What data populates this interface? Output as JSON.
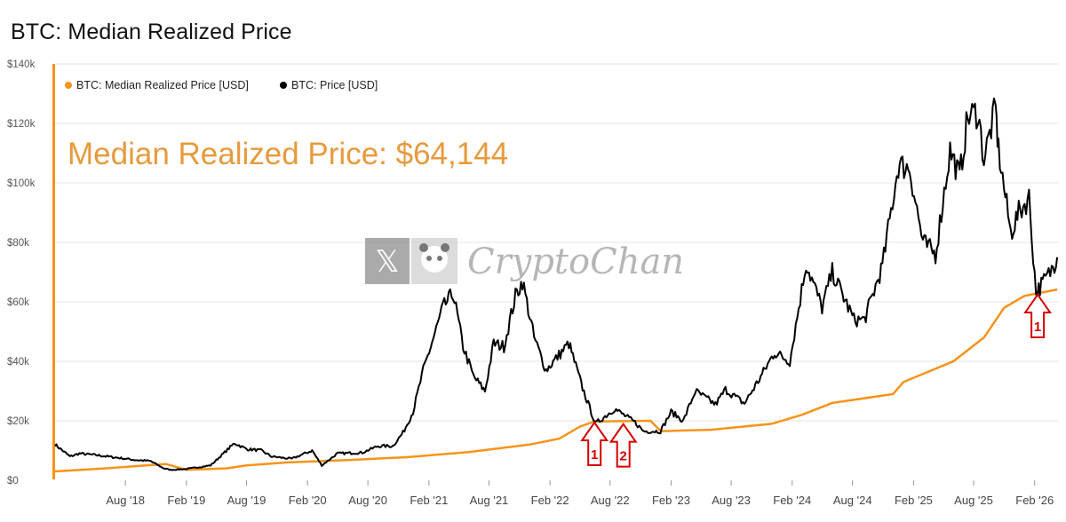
{
  "title": "BTC: Median Realized Price",
  "colors": {
    "median": "#F7931A",
    "price": "#000000",
    "arrow": "#D40000",
    "annotation": "#E79A3D"
  },
  "watermark": {
    "text": "CryptoChan",
    "icons": [
      "x-logo-icon",
      "panda-avatar-icon"
    ]
  },
  "annotation": "Median Realized Price: $64,144",
  "arrows": [
    {
      "label": "1",
      "date": "2022-06-15",
      "value": 20000
    },
    {
      "label": "2",
      "date": "2022-09-10",
      "value": 19500
    },
    {
      "label": "1",
      "date": "2026-02-10",
      "value": 63000
    }
  ],
  "chart_data": {
    "type": "line",
    "title": "BTC: Median Realized Price",
    "xlabel": "",
    "ylabel": "",
    "ylim": [
      0,
      140000
    ],
    "grid": "horizontal",
    "legend_placement": "top-left",
    "x_ticks": [
      "Aug '18",
      "Feb '19",
      "Aug '19",
      "Feb '20",
      "Aug '20",
      "Feb '21",
      "Aug '21",
      "Feb '22",
      "Aug '22",
      "Feb '23",
      "Aug '23",
      "Feb '24",
      "Aug '24",
      "Feb '25",
      "Aug '25",
      "Feb '26"
    ],
    "y_ticks": [
      {
        "value": 0,
        "label": "$0"
      },
      {
        "value": 20000,
        "label": "$20k"
      },
      {
        "value": 40000,
        "label": "$40k"
      },
      {
        "value": 60000,
        "label": "$60k"
      },
      {
        "value": 80000,
        "label": "$80k"
      },
      {
        "value": 100000,
        "label": "$100k"
      },
      {
        "value": 120000,
        "label": "$120k"
      },
      {
        "value": 140000,
        "label": "$140k"
      }
    ],
    "series": [
      {
        "name": "BTC: Median Realized Price [USD]",
        "color": "#F7931A",
        "points": [
          [
            "2018-01-01",
            3000
          ],
          [
            "2018-06-01",
            4000
          ],
          [
            "2018-10-01",
            5000
          ],
          [
            "2018-12-01",
            5500
          ],
          [
            "2019-02-01",
            3500
          ],
          [
            "2019-06-01",
            4000
          ],
          [
            "2019-08-01",
            5000
          ],
          [
            "2019-12-01",
            6000
          ],
          [
            "2020-06-01",
            6800
          ],
          [
            "2020-12-01",
            7800
          ],
          [
            "2021-06-01",
            9500
          ],
          [
            "2021-12-01",
            12000
          ],
          [
            "2022-03-01",
            14000
          ],
          [
            "2022-05-01",
            18000
          ],
          [
            "2022-06-15",
            19800
          ],
          [
            "2022-12-01",
            20000
          ],
          [
            "2023-01-01",
            16500
          ],
          [
            "2023-06-01",
            17000
          ],
          [
            "2023-12-01",
            19000
          ],
          [
            "2024-03-01",
            22000
          ],
          [
            "2024-06-01",
            26000
          ],
          [
            "2024-12-01",
            29000
          ],
          [
            "2025-01-01",
            33000
          ],
          [
            "2025-06-01",
            40000
          ],
          [
            "2025-09-01",
            48000
          ],
          [
            "2025-11-01",
            58000
          ],
          [
            "2026-01-01",
            62000
          ],
          [
            "2026-04-10",
            64144
          ]
        ]
      },
      {
        "name": "BTC: Price [USD]",
        "color": "#000000",
        "points": [
          [
            "2018-01-01",
            12000
          ],
          [
            "2018-02-15",
            8000
          ],
          [
            "2018-03-15",
            9000
          ],
          [
            "2018-05-01",
            8500
          ],
          [
            "2018-07-15",
            7500
          ],
          [
            "2018-09-01",
            6800
          ],
          [
            "2018-10-15",
            6500
          ],
          [
            "2018-11-25",
            4000
          ],
          [
            "2018-12-15",
            3500
          ],
          [
            "2019-02-01",
            3800
          ],
          [
            "2019-04-15",
            5000
          ],
          [
            "2019-06-26",
            12500
          ],
          [
            "2019-08-01",
            10500
          ],
          [
            "2019-09-15",
            10000
          ],
          [
            "2019-10-15",
            8000
          ],
          [
            "2019-12-15",
            7200
          ],
          [
            "2020-02-15",
            10000
          ],
          [
            "2020-03-15",
            5000
          ],
          [
            "2020-05-01",
            9000
          ],
          [
            "2020-07-15",
            9300
          ],
          [
            "2020-09-01",
            11500
          ],
          [
            "2020-10-15",
            11500
          ],
          [
            "2020-11-15",
            16000
          ],
          [
            "2020-12-15",
            23000
          ],
          [
            "2021-01-15",
            37000
          ],
          [
            "2021-02-15",
            48000
          ],
          [
            "2021-03-15",
            58000
          ],
          [
            "2021-04-15",
            63000
          ],
          [
            "2021-05-15",
            45000
          ],
          [
            "2021-06-15",
            35000
          ],
          [
            "2021-07-20",
            30000
          ],
          [
            "2021-08-15",
            46000
          ],
          [
            "2021-09-15",
            45000
          ],
          [
            "2021-10-20",
            62000
          ],
          [
            "2021-11-10",
            67000
          ],
          [
            "2021-12-15",
            48000
          ],
          [
            "2022-01-20",
            37000
          ],
          [
            "2022-03-30",
            46000
          ],
          [
            "2022-05-10",
            31000
          ],
          [
            "2022-06-18",
            19000
          ],
          [
            "2022-08-15",
            24000
          ],
          [
            "2022-10-15",
            19500
          ],
          [
            "2022-11-10",
            16500
          ],
          [
            "2022-12-31",
            16500
          ],
          [
            "2023-02-01",
            23000
          ],
          [
            "2023-03-10",
            20000
          ],
          [
            "2023-04-15",
            30000
          ],
          [
            "2023-06-15",
            25500
          ],
          [
            "2023-07-15",
            30500
          ],
          [
            "2023-09-10",
            25800
          ],
          [
            "2023-10-25",
            34000
          ],
          [
            "2023-12-10",
            43000
          ],
          [
            "2024-01-25",
            40000
          ],
          [
            "2024-03-14",
            73000
          ],
          [
            "2024-05-01",
            58000
          ],
          [
            "2024-06-01",
            70000
          ],
          [
            "2024-08-05",
            54000
          ],
          [
            "2024-09-06",
            54000
          ],
          [
            "2024-10-30",
            72000
          ],
          [
            "2024-12-17",
            106000
          ],
          [
            "2025-01-20",
            105000
          ],
          [
            "2025-03-01",
            80000
          ],
          [
            "2025-04-08",
            76000
          ],
          [
            "2025-05-22",
            111000
          ],
          [
            "2025-06-20",
            102000
          ],
          [
            "2025-07-14",
            122000
          ],
          [
            "2025-08-14",
            124000
          ],
          [
            "2025-09-01",
            108000
          ],
          [
            "2025-10-06",
            125000
          ],
          [
            "2025-10-15",
            111000
          ],
          [
            "2025-11-21",
            83000
          ],
          [
            "2025-12-15",
            90000
          ],
          [
            "2026-01-15",
            95000
          ],
          [
            "2026-02-05",
            63000
          ],
          [
            "2026-03-01",
            67000
          ],
          [
            "2026-03-20",
            70000
          ],
          [
            "2026-04-10",
            75000
          ]
        ]
      }
    ]
  }
}
